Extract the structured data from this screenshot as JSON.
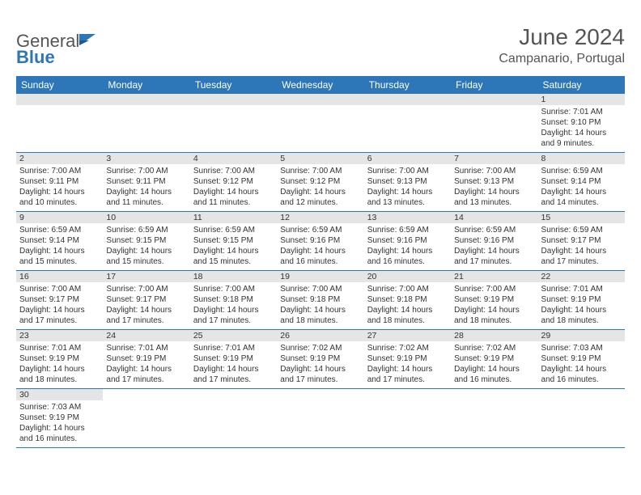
{
  "logo": {
    "general": "General",
    "blue": "Blue"
  },
  "title": "June 2024",
  "location": "Campanario, Portugal",
  "colors": {
    "header_bg": "#2d77b8",
    "header_text": "#ffffff",
    "daynum_bg": "#e5e5e5",
    "divider": "#2d77b8",
    "text": "#333333"
  },
  "weekdays": [
    "Sunday",
    "Monday",
    "Tuesday",
    "Wednesday",
    "Thursday",
    "Friday",
    "Saturday"
  ],
  "weeks": [
    [
      null,
      null,
      null,
      null,
      null,
      null,
      {
        "n": "1",
        "sr": "Sunrise: 7:01 AM",
        "ss": "Sunset: 9:10 PM",
        "d1": "Daylight: 14 hours",
        "d2": "and 9 minutes."
      }
    ],
    [
      {
        "n": "2",
        "sr": "Sunrise: 7:00 AM",
        "ss": "Sunset: 9:11 PM",
        "d1": "Daylight: 14 hours",
        "d2": "and 10 minutes."
      },
      {
        "n": "3",
        "sr": "Sunrise: 7:00 AM",
        "ss": "Sunset: 9:11 PM",
        "d1": "Daylight: 14 hours",
        "d2": "and 11 minutes."
      },
      {
        "n": "4",
        "sr": "Sunrise: 7:00 AM",
        "ss": "Sunset: 9:12 PM",
        "d1": "Daylight: 14 hours",
        "d2": "and 11 minutes."
      },
      {
        "n": "5",
        "sr": "Sunrise: 7:00 AM",
        "ss": "Sunset: 9:12 PM",
        "d1": "Daylight: 14 hours",
        "d2": "and 12 minutes."
      },
      {
        "n": "6",
        "sr": "Sunrise: 7:00 AM",
        "ss": "Sunset: 9:13 PM",
        "d1": "Daylight: 14 hours",
        "d2": "and 13 minutes."
      },
      {
        "n": "7",
        "sr": "Sunrise: 7:00 AM",
        "ss": "Sunset: 9:13 PM",
        "d1": "Daylight: 14 hours",
        "d2": "and 13 minutes."
      },
      {
        "n": "8",
        "sr": "Sunrise: 6:59 AM",
        "ss": "Sunset: 9:14 PM",
        "d1": "Daylight: 14 hours",
        "d2": "and 14 minutes."
      }
    ],
    [
      {
        "n": "9",
        "sr": "Sunrise: 6:59 AM",
        "ss": "Sunset: 9:14 PM",
        "d1": "Daylight: 14 hours",
        "d2": "and 15 minutes."
      },
      {
        "n": "10",
        "sr": "Sunrise: 6:59 AM",
        "ss": "Sunset: 9:15 PM",
        "d1": "Daylight: 14 hours",
        "d2": "and 15 minutes."
      },
      {
        "n": "11",
        "sr": "Sunrise: 6:59 AM",
        "ss": "Sunset: 9:15 PM",
        "d1": "Daylight: 14 hours",
        "d2": "and 15 minutes."
      },
      {
        "n": "12",
        "sr": "Sunrise: 6:59 AM",
        "ss": "Sunset: 9:16 PM",
        "d1": "Daylight: 14 hours",
        "d2": "and 16 minutes."
      },
      {
        "n": "13",
        "sr": "Sunrise: 6:59 AM",
        "ss": "Sunset: 9:16 PM",
        "d1": "Daylight: 14 hours",
        "d2": "and 16 minutes."
      },
      {
        "n": "14",
        "sr": "Sunrise: 6:59 AM",
        "ss": "Sunset: 9:16 PM",
        "d1": "Daylight: 14 hours",
        "d2": "and 17 minutes."
      },
      {
        "n": "15",
        "sr": "Sunrise: 6:59 AM",
        "ss": "Sunset: 9:17 PM",
        "d1": "Daylight: 14 hours",
        "d2": "and 17 minutes."
      }
    ],
    [
      {
        "n": "16",
        "sr": "Sunrise: 7:00 AM",
        "ss": "Sunset: 9:17 PM",
        "d1": "Daylight: 14 hours",
        "d2": "and 17 minutes."
      },
      {
        "n": "17",
        "sr": "Sunrise: 7:00 AM",
        "ss": "Sunset: 9:17 PM",
        "d1": "Daylight: 14 hours",
        "d2": "and 17 minutes."
      },
      {
        "n": "18",
        "sr": "Sunrise: 7:00 AM",
        "ss": "Sunset: 9:18 PM",
        "d1": "Daylight: 14 hours",
        "d2": "and 17 minutes."
      },
      {
        "n": "19",
        "sr": "Sunrise: 7:00 AM",
        "ss": "Sunset: 9:18 PM",
        "d1": "Daylight: 14 hours",
        "d2": "and 18 minutes."
      },
      {
        "n": "20",
        "sr": "Sunrise: 7:00 AM",
        "ss": "Sunset: 9:18 PM",
        "d1": "Daylight: 14 hours",
        "d2": "and 18 minutes."
      },
      {
        "n": "21",
        "sr": "Sunrise: 7:00 AM",
        "ss": "Sunset: 9:19 PM",
        "d1": "Daylight: 14 hours",
        "d2": "and 18 minutes."
      },
      {
        "n": "22",
        "sr": "Sunrise: 7:01 AM",
        "ss": "Sunset: 9:19 PM",
        "d1": "Daylight: 14 hours",
        "d2": "and 18 minutes."
      }
    ],
    [
      {
        "n": "23",
        "sr": "Sunrise: 7:01 AM",
        "ss": "Sunset: 9:19 PM",
        "d1": "Daylight: 14 hours",
        "d2": "and 18 minutes."
      },
      {
        "n": "24",
        "sr": "Sunrise: 7:01 AM",
        "ss": "Sunset: 9:19 PM",
        "d1": "Daylight: 14 hours",
        "d2": "and 17 minutes."
      },
      {
        "n": "25",
        "sr": "Sunrise: 7:01 AM",
        "ss": "Sunset: 9:19 PM",
        "d1": "Daylight: 14 hours",
        "d2": "and 17 minutes."
      },
      {
        "n": "26",
        "sr": "Sunrise: 7:02 AM",
        "ss": "Sunset: 9:19 PM",
        "d1": "Daylight: 14 hours",
        "d2": "and 17 minutes."
      },
      {
        "n": "27",
        "sr": "Sunrise: 7:02 AM",
        "ss": "Sunset: 9:19 PM",
        "d1": "Daylight: 14 hours",
        "d2": "and 17 minutes."
      },
      {
        "n": "28",
        "sr": "Sunrise: 7:02 AM",
        "ss": "Sunset: 9:19 PM",
        "d1": "Daylight: 14 hours",
        "d2": "and 16 minutes."
      },
      {
        "n": "29",
        "sr": "Sunrise: 7:03 AM",
        "ss": "Sunset: 9:19 PM",
        "d1": "Daylight: 14 hours",
        "d2": "and 16 minutes."
      }
    ],
    [
      {
        "n": "30",
        "sr": "Sunrise: 7:03 AM",
        "ss": "Sunset: 9:19 PM",
        "d1": "Daylight: 14 hours",
        "d2": "and 16 minutes."
      },
      null,
      null,
      null,
      null,
      null,
      null
    ]
  ]
}
